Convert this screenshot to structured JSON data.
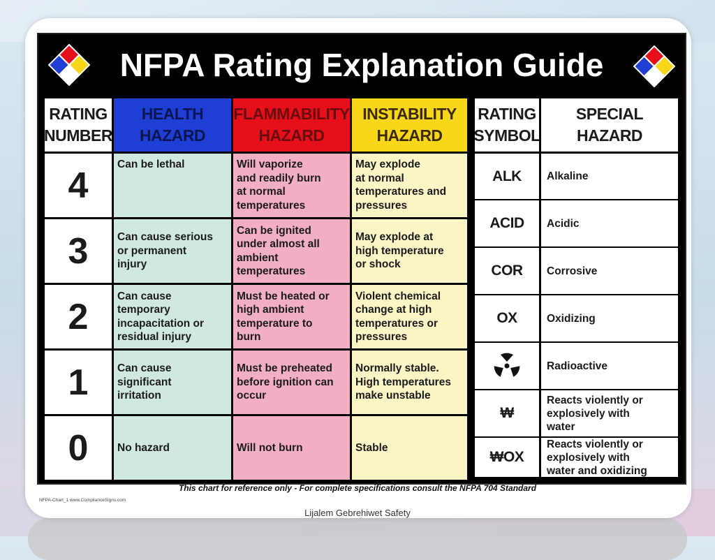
{
  "title": "NFPA Rating Explanation Guide",
  "headers": {
    "rating_number": [
      "RATING",
      "NUMBER"
    ],
    "health": [
      "HEALTH",
      "HAZARD"
    ],
    "flammability": [
      "FLAMMABILITY",
      "HAZARD"
    ],
    "instability": [
      "INSTABILITY",
      "HAZARD"
    ],
    "rating_symbol": [
      "RATING",
      "SYMBOL"
    ],
    "special": [
      "SPECIAL",
      "HAZARD"
    ]
  },
  "colors": {
    "health": "#1f3fd4",
    "flammability": "#e5101a",
    "instability": "#f8d71a",
    "special": "#ffffff"
  },
  "ratings": [
    {
      "number": "4",
      "health": [
        "Can be lethal"
      ],
      "flammability": [
        "Will vaporize",
        "and readily burn",
        "at normal",
        "temperatures"
      ],
      "instability": [
        "May explode",
        "at normal",
        "temperatures and",
        "pressures"
      ]
    },
    {
      "number": "3",
      "health": [
        "Can cause serious",
        "or permanent",
        "injury"
      ],
      "flammability": [
        "Can be ignited",
        "under almost all",
        "ambient",
        "temperatures"
      ],
      "instability": [
        "May explode at",
        "high temperature",
        "or shock"
      ]
    },
    {
      "number": "2",
      "health": [
        "Can cause",
        "temporary",
        "incapacitation or",
        "residual injury"
      ],
      "flammability": [
        "Must be heated or",
        "high ambient",
        "temperature to",
        "burn"
      ],
      "instability": [
        "Violent chemical",
        "change at high",
        "temperatures or",
        "pressures"
      ]
    },
    {
      "number": "1",
      "health": [
        "Can cause",
        "significant",
        "irritation"
      ],
      "flammability": [
        "Must be preheated",
        "before ignition can",
        "occur"
      ],
      "instability": [
        "Normally stable.",
        "High temperatures",
        "make unstable"
      ]
    },
    {
      "number": "0",
      "health": [
        "No hazard"
      ],
      "flammability": [
        "Will not burn"
      ],
      "instability": [
        "Stable"
      ]
    }
  ],
  "special_hazards": [
    {
      "symbol": "ALK",
      "symbol_icon": "",
      "meaning": [
        "Alkaline"
      ]
    },
    {
      "symbol": "ACID",
      "symbol_icon": "",
      "meaning": [
        "Acidic"
      ]
    },
    {
      "symbol": "COR",
      "symbol_icon": "",
      "meaning": [
        "Corrosive"
      ]
    },
    {
      "symbol": "OX",
      "symbol_icon": "",
      "meaning": [
        "Oxidizing"
      ]
    },
    {
      "symbol": "",
      "symbol_icon": "radiation-trefoil-icon",
      "meaning": [
        "Radioactive"
      ]
    },
    {
      "symbol": "₩",
      "symbol_icon": "",
      "meaning": [
        "Reacts violently or",
        "explosively with",
        "water"
      ]
    },
    {
      "symbol": "₩OX",
      "symbol_icon": "",
      "meaning": [
        "Reacts violently or",
        "explosively with",
        "water and oxidizing"
      ]
    }
  ],
  "footnote": "This chart for reference only - For complete specifications consult the NFPA 704 Standard",
  "chart_id": "NFPA-Chart_1   www.ComplianceSigns.com",
  "credit": "Lijalem Gebrehiwet  Safety"
}
